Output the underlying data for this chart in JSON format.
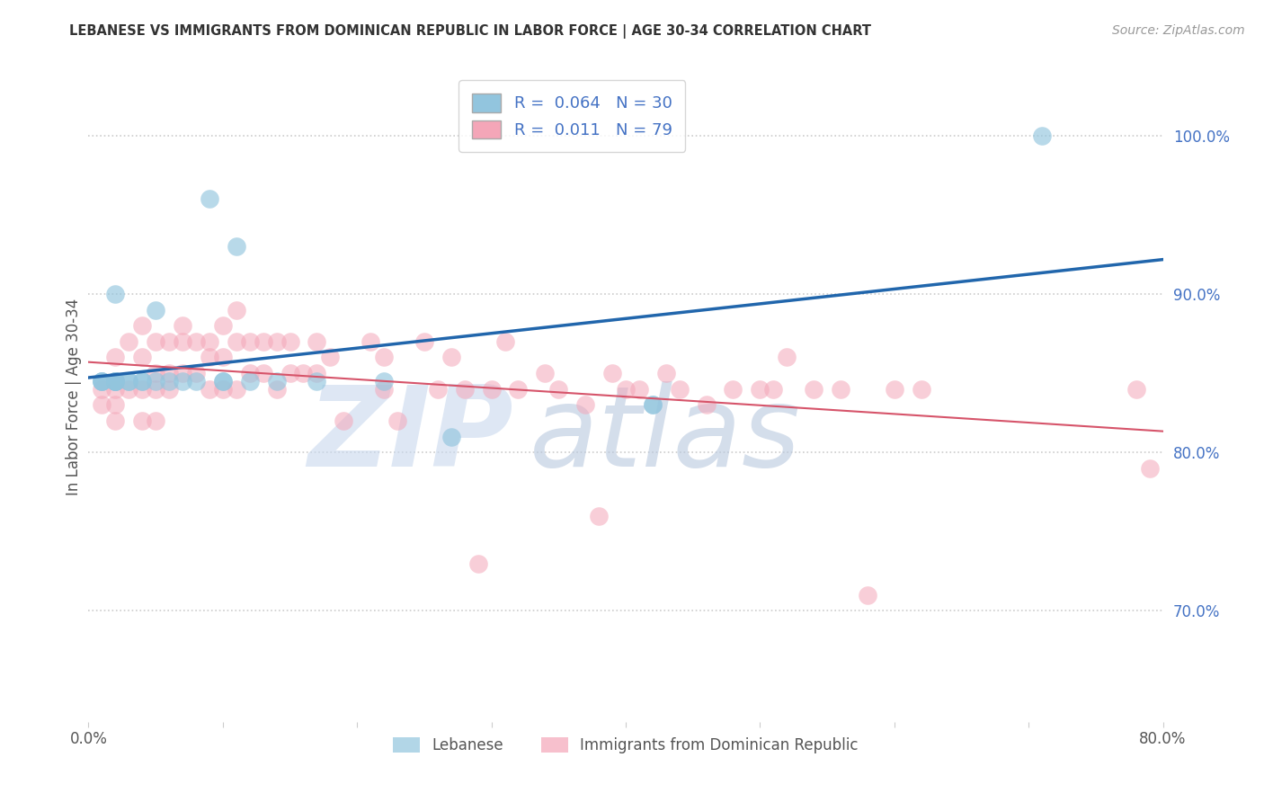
{
  "title": "LEBANESE VS IMMIGRANTS FROM DOMINICAN REPUBLIC IN LABOR FORCE | AGE 30-34 CORRELATION CHART",
  "source": "Source: ZipAtlas.com",
  "ylabel": "In Labor Force | Age 30-34",
  "legend_labels": [
    "Lebanese",
    "Immigrants from Dominican Republic"
  ],
  "legend_r_vals": [
    "0.064",
    "0.011"
  ],
  "legend_n_vals": [
    "30",
    "79"
  ],
  "blue_color": "#92c5de",
  "pink_color": "#f4a6b8",
  "blue_line_color": "#2166ac",
  "pink_line_color": "#d6546a",
  "xlim": [
    0.0,
    0.8
  ],
  "ylim": [
    0.63,
    1.04
  ],
  "yticks": [
    0.7,
    0.8,
    0.9,
    1.0
  ],
  "ytick_labels": [
    "70.0%",
    "80.0%",
    "90.0%",
    "100.0%"
  ],
  "xticks": [
    0.0,
    0.1,
    0.2,
    0.3,
    0.4,
    0.5,
    0.6,
    0.7,
    0.8
  ],
  "xtick_labels": [
    "0.0%",
    "",
    "",
    "",
    "",
    "",
    "",
    "",
    "80.0%"
  ],
  "blue_x": [
    0.01,
    0.01,
    0.01,
    0.02,
    0.02,
    0.02,
    0.02,
    0.02,
    0.02,
    0.03,
    0.03,
    0.04,
    0.04,
    0.05,
    0.05,
    0.06,
    0.07,
    0.08,
    0.09,
    0.1,
    0.1,
    0.11,
    0.12,
    0.14,
    0.17,
    0.22,
    0.27,
    0.42,
    0.42,
    0.71
  ],
  "blue_y": [
    0.845,
    0.845,
    0.845,
    0.845,
    0.845,
    0.845,
    0.845,
    0.845,
    0.9,
    0.845,
    0.845,
    0.845,
    0.845,
    0.845,
    0.89,
    0.845,
    0.845,
    0.845,
    0.96,
    0.845,
    0.845,
    0.93,
    0.845,
    0.845,
    0.845,
    0.845,
    0.81,
    0.83,
    0.83,
    1.0
  ],
  "pink_x": [
    0.01,
    0.01,
    0.02,
    0.02,
    0.02,
    0.02,
    0.03,
    0.03,
    0.04,
    0.04,
    0.04,
    0.04,
    0.05,
    0.05,
    0.05,
    0.05,
    0.06,
    0.06,
    0.06,
    0.07,
    0.07,
    0.07,
    0.08,
    0.08,
    0.09,
    0.09,
    0.09,
    0.1,
    0.1,
    0.1,
    0.11,
    0.11,
    0.11,
    0.12,
    0.12,
    0.13,
    0.13,
    0.14,
    0.14,
    0.15,
    0.15,
    0.16,
    0.17,
    0.17,
    0.18,
    0.19,
    0.21,
    0.22,
    0.22,
    0.23,
    0.25,
    0.26,
    0.27,
    0.28,
    0.29,
    0.3,
    0.31,
    0.32,
    0.34,
    0.35,
    0.37,
    0.38,
    0.39,
    0.4,
    0.41,
    0.43,
    0.44,
    0.46,
    0.48,
    0.5,
    0.51,
    0.52,
    0.54,
    0.56,
    0.58,
    0.6,
    0.62,
    0.78,
    0.79
  ],
  "pink_y": [
    0.84,
    0.83,
    0.86,
    0.84,
    0.83,
    0.82,
    0.87,
    0.84,
    0.88,
    0.86,
    0.84,
    0.82,
    0.87,
    0.85,
    0.84,
    0.82,
    0.87,
    0.85,
    0.84,
    0.88,
    0.87,
    0.85,
    0.87,
    0.85,
    0.87,
    0.86,
    0.84,
    0.88,
    0.86,
    0.84,
    0.89,
    0.87,
    0.84,
    0.87,
    0.85,
    0.87,
    0.85,
    0.87,
    0.84,
    0.87,
    0.85,
    0.85,
    0.87,
    0.85,
    0.86,
    0.82,
    0.87,
    0.86,
    0.84,
    0.82,
    0.87,
    0.84,
    0.86,
    0.84,
    0.73,
    0.84,
    0.87,
    0.84,
    0.85,
    0.84,
    0.83,
    0.76,
    0.85,
    0.84,
    0.84,
    0.85,
    0.84,
    0.83,
    0.84,
    0.84,
    0.84,
    0.86,
    0.84,
    0.84,
    0.71,
    0.84,
    0.84,
    0.84,
    0.79
  ],
  "background_color": "#ffffff",
  "grid_color": "#cccccc",
  "watermark_zip_color": "#c8d8ee",
  "watermark_atlas_color": "#b8c8de",
  "watermark_alpha": 0.6
}
